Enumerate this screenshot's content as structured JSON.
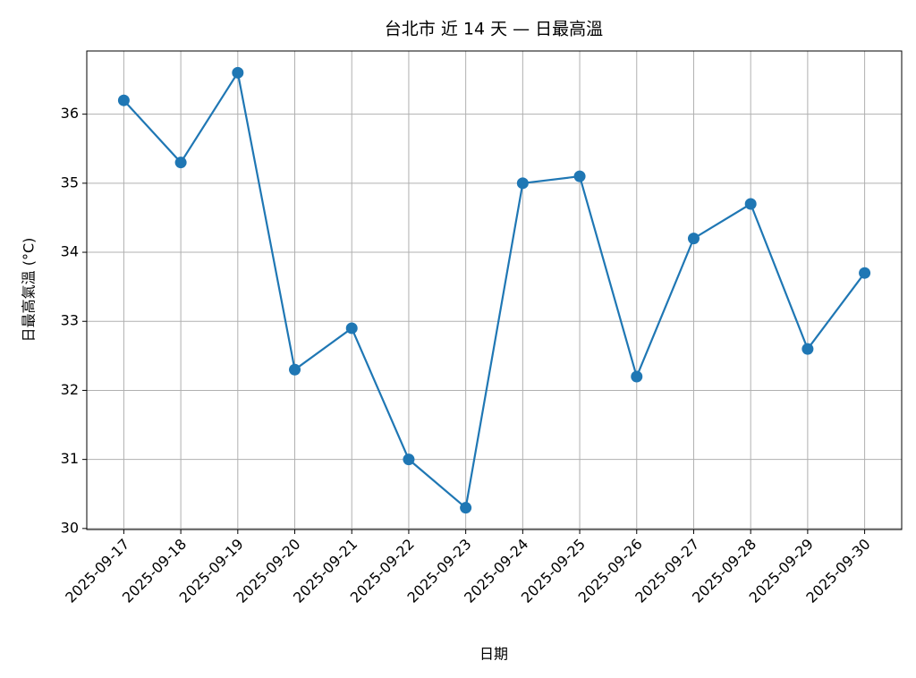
{
  "chart_data": {
    "type": "line",
    "title": "台北市 近 14 天 — 日最高溫",
    "x_label": "日期",
    "y_label": "日最高氣溫 (°C)",
    "categories": [
      "2025-09-17",
      "2025-09-18",
      "2025-09-19",
      "2025-09-20",
      "2025-09-21",
      "2025-09-22",
      "2025-09-23",
      "2025-09-24",
      "2025-09-25",
      "2025-09-26",
      "2025-09-27",
      "2025-09-28",
      "2025-09-29",
      "2025-09-30"
    ],
    "series": [
      {
        "name": "日最高溫",
        "color": "#1f77b4",
        "values": [
          36.2,
          35.3,
          36.6,
          32.3,
          32.9,
          31.0,
          30.3,
          35.0,
          35.1,
          32.2,
          34.2,
          34.7,
          32.6,
          33.7
        ]
      }
    ],
    "ylim": [
      29.985,
      36.915
    ],
    "yticks": [
      30,
      31,
      32,
      33,
      34,
      35,
      36
    ],
    "grid": true
  }
}
